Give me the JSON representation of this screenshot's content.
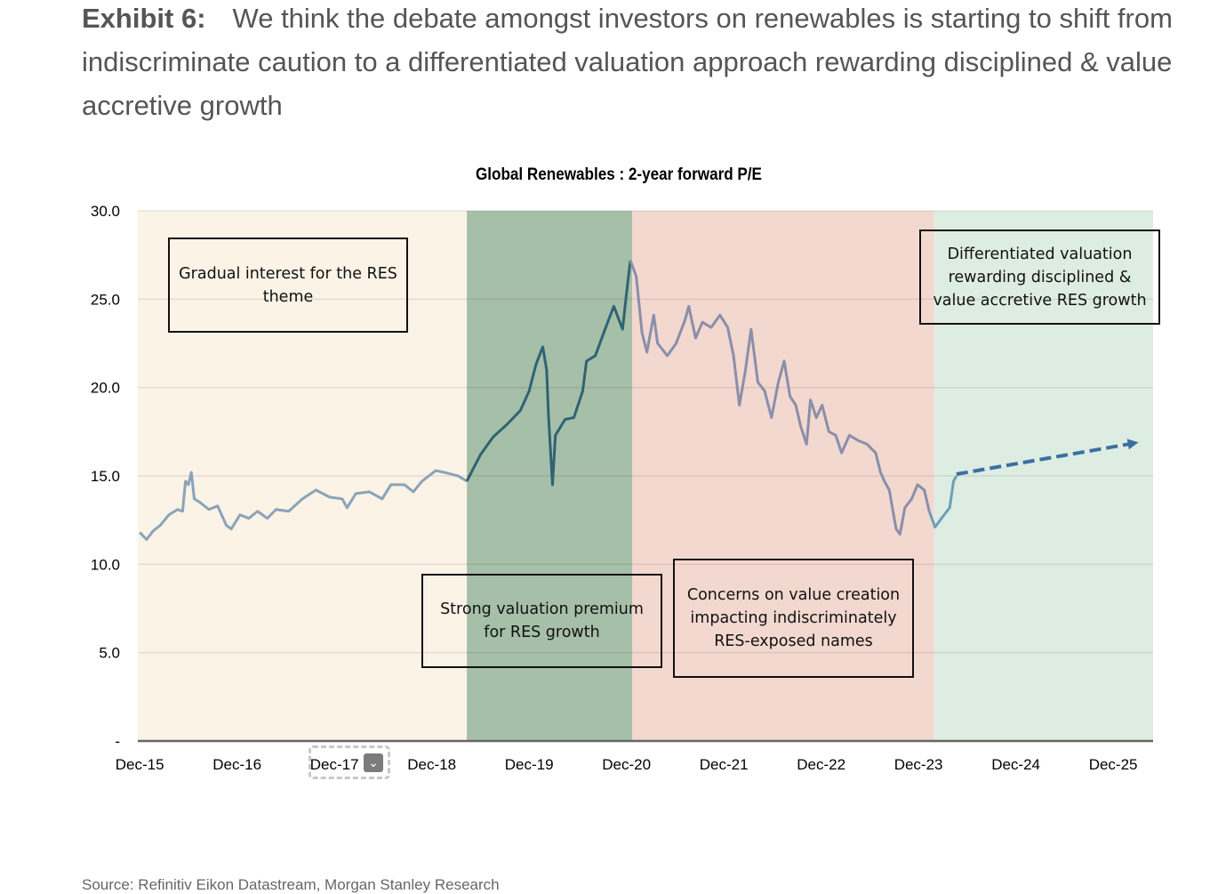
{
  "header": {
    "exhibit": "Exhibit 6:",
    "text": "We think the debate amongst investors on renewables is starting to shift from indiscriminate caution to a differentiated valuation approach rewarding disciplined & value accretive growth"
  },
  "source": "Source: Refinitiv Eikon Datastream, Morgan Stanley Research",
  "colors": {
    "band1": "#faf3e6",
    "band2": "#a6bfa8",
    "band3": "#f2d8cf",
    "band4": "#deede2",
    "line1": "#8aa3b8",
    "line2": "#2f6374",
    "line3": "#8a8faa",
    "line4": "#6d9fba",
    "projection": "#3a6fa3"
  },
  "chart_data": {
    "type": "line",
    "title": "Global Renewables : 2-year forward P/E",
    "xlabel": "",
    "ylabel": "",
    "x_unit": "years since Dec-15",
    "xlim": [
      -0.02,
      10.41
    ],
    "ylim": [
      0,
      30
    ],
    "yticks": [
      {
        "v": 0,
        "label": "-"
      },
      {
        "v": 5,
        "label": "5.0"
      },
      {
        "v": 10,
        "label": "10.0"
      },
      {
        "v": 15,
        "label": "15.0"
      },
      {
        "v": 20,
        "label": "20.0"
      },
      {
        "v": 25,
        "label": "25.0"
      },
      {
        "v": 30,
        "label": "30.0"
      }
    ],
    "xticks": [
      {
        "v": 0,
        "label": "Dec-15"
      },
      {
        "v": 1,
        "label": "Dec-16"
      },
      {
        "v": 2,
        "label": "Dec-17"
      },
      {
        "v": 3,
        "label": "Dec-18"
      },
      {
        "v": 4,
        "label": "Dec-19"
      },
      {
        "v": 5,
        "label": "Dec-20"
      },
      {
        "v": 6,
        "label": "Dec-21"
      },
      {
        "v": 7,
        "label": "Dec-22"
      },
      {
        "v": 8,
        "label": "Dec-23"
      },
      {
        "v": 9,
        "label": "Dec-24"
      },
      {
        "v": 10,
        "label": "Dec-25"
      }
    ],
    "grid": true,
    "bands": [
      {
        "from": 0,
        "to": 3.36,
        "color": "#faf3e6",
        "label": "Gradual interest for the RES theme"
      },
      {
        "from": 3.36,
        "to": 5.06,
        "color": "#a6bfa8",
        "label": "Strong valuation premium for RES growth"
      },
      {
        "from": 5.06,
        "to": 8.16,
        "color": "#f2d8cf",
        "label": "Concerns on value creation impacting indiscriminately RES-exposed names"
      },
      {
        "from": 8.16,
        "to": 10.43,
        "color": "#deede2",
        "label": "Differentiated valuation rewarding disciplined & value accretive RES growth"
      }
    ],
    "series": [
      {
        "name": "2-year forward P/E",
        "points": [
          [
            0,
            11.8
          ],
          [
            0.07,
            11.4
          ],
          [
            0.14,
            11.9
          ],
          [
            0.21,
            12.2
          ],
          [
            0.3,
            12.8
          ],
          [
            0.39,
            13.1
          ],
          [
            0.44,
            13.0
          ],
          [
            0.47,
            14.7
          ],
          [
            0.5,
            14.5
          ],
          [
            0.53,
            15.2
          ],
          [
            0.56,
            13.7
          ],
          [
            0.62,
            13.5
          ],
          [
            0.71,
            13.1
          ],
          [
            0.8,
            13.3
          ],
          [
            0.89,
            12.2
          ],
          [
            0.94,
            12.0
          ],
          [
            1.03,
            12.8
          ],
          [
            1.12,
            12.6
          ],
          [
            1.21,
            13.0
          ],
          [
            1.31,
            12.6
          ],
          [
            1.4,
            13.1
          ],
          [
            1.53,
            13.0
          ],
          [
            1.67,
            13.7
          ],
          [
            1.81,
            14.2
          ],
          [
            1.95,
            13.8
          ],
          [
            2.08,
            13.7
          ],
          [
            2.13,
            13.2
          ],
          [
            2.22,
            14.0
          ],
          [
            2.36,
            14.1
          ],
          [
            2.49,
            13.7
          ],
          [
            2.58,
            14.5
          ],
          [
            2.72,
            14.5
          ],
          [
            2.81,
            14.1
          ],
          [
            2.9,
            14.7
          ],
          [
            3.04,
            15.3
          ],
          [
            3.13,
            15.2
          ],
          [
            3.27,
            15.0
          ],
          [
            3.36,
            14.7
          ],
          [
            3.5,
            16.2
          ],
          [
            3.63,
            17.2
          ],
          [
            3.77,
            17.9
          ],
          [
            3.91,
            18.7
          ],
          [
            4.0,
            19.8
          ],
          [
            4.07,
            21.3
          ],
          [
            4.14,
            22.3
          ],
          [
            4.18,
            21.0
          ],
          [
            4.2,
            18.3
          ],
          [
            4.24,
            14.5
          ],
          [
            4.27,
            17.3
          ],
          [
            4.37,
            18.2
          ],
          [
            4.46,
            18.3
          ],
          [
            4.55,
            19.8
          ],
          [
            4.59,
            21.5
          ],
          [
            4.68,
            21.8
          ],
          [
            4.78,
            23.3
          ],
          [
            4.87,
            24.6
          ],
          [
            4.96,
            23.3
          ],
          [
            5.0,
            25.3
          ],
          [
            5.04,
            27.2
          ],
          [
            5.1,
            26.3
          ],
          [
            5.16,
            23.1
          ],
          [
            5.21,
            22.0
          ],
          [
            5.28,
            24.1
          ],
          [
            5.32,
            22.5
          ],
          [
            5.42,
            21.8
          ],
          [
            5.51,
            22.5
          ],
          [
            5.6,
            23.8
          ],
          [
            5.64,
            24.6
          ],
          [
            5.71,
            22.8
          ],
          [
            5.78,
            23.7
          ],
          [
            5.87,
            23.4
          ],
          [
            5.96,
            24.1
          ],
          [
            6.04,
            23.4
          ],
          [
            6.1,
            21.8
          ],
          [
            6.16,
            19.0
          ],
          [
            6.22,
            20.9
          ],
          [
            6.28,
            23.3
          ],
          [
            6.35,
            20.3
          ],
          [
            6.42,
            19.8
          ],
          [
            6.49,
            18.3
          ],
          [
            6.56,
            20.3
          ],
          [
            6.62,
            21.5
          ],
          [
            6.68,
            19.5
          ],
          [
            6.74,
            19.0
          ],
          [
            6.79,
            17.8
          ],
          [
            6.85,
            16.8
          ],
          [
            6.89,
            19.3
          ],
          [
            6.95,
            18.3
          ],
          [
            7.01,
            19.0
          ],
          [
            7.08,
            17.5
          ],
          [
            7.15,
            17.3
          ],
          [
            7.21,
            16.3
          ],
          [
            7.29,
            17.3
          ],
          [
            7.38,
            17.0
          ],
          [
            7.47,
            16.8
          ],
          [
            7.56,
            16.3
          ],
          [
            7.61,
            15.2
          ],
          [
            7.65,
            14.7
          ],
          [
            7.7,
            14.2
          ],
          [
            7.77,
            12.0
          ],
          [
            7.81,
            11.7
          ],
          [
            7.86,
            13.2
          ],
          [
            7.93,
            13.7
          ],
          [
            7.99,
            14.5
          ],
          [
            8.06,
            14.2
          ],
          [
            8.11,
            13.0
          ],
          [
            8.17,
            12.1
          ],
          [
            8.25,
            12.7
          ],
          [
            8.32,
            13.2
          ],
          [
            8.36,
            14.7
          ],
          [
            8.39,
            15.0
          ]
        ]
      },
      {
        "name": "Projection",
        "style": "dashed-arrow",
        "points": [
          [
            8.39,
            15.1
          ],
          [
            10.26,
            16.9
          ]
        ]
      }
    ]
  },
  "dropdown": {
    "selected": "Dec-17"
  }
}
